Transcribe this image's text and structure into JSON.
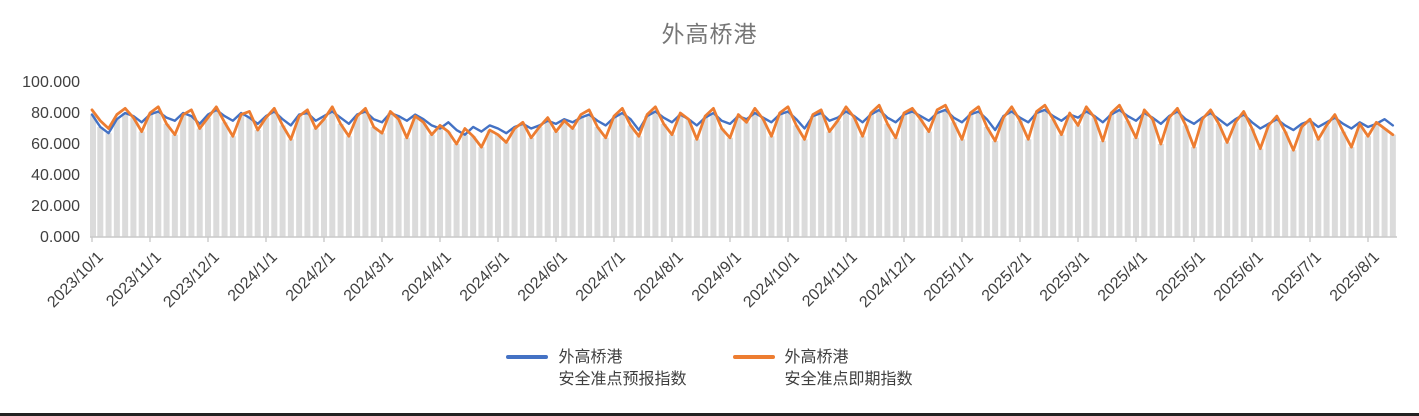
{
  "chart_data": {
    "type": "line",
    "title": "外高桥港",
    "legend_position": "bottom",
    "grid": false,
    "ylim": [
      0,
      100
    ],
    "y_tick_values": [
      0,
      20,
      40,
      60,
      80,
      100
    ],
    "y_tick_labels": [
      "0.000",
      "20.000",
      "40.000",
      "60.000",
      "80.000",
      "100.000"
    ],
    "x_tick_labels": [
      "2023/10/1",
      "2023/11/1",
      "2023/12/1",
      "2024/1/1",
      "2024/2/1",
      "2024/3/1",
      "2024/4/1",
      "2024/5/1",
      "2024/6/1",
      "2024/7/1",
      "2024/8/1",
      "2024/9/1",
      "2024/10/1",
      "2024/11/1",
      "2024/12/1",
      "2025/1/1",
      "2025/2/1",
      "2025/3/1",
      "2025/4/1",
      "2025/5/1",
      "2025/6/1",
      "2025/7/1",
      "2025/8/1"
    ],
    "points_per_tick": 7,
    "drop_bars": {
      "show": true,
      "color": "#dbdbdb"
    },
    "axis_color": "#c9c9c9",
    "tick_text_color": "#404040",
    "title_color": "#767676",
    "series": [
      {
        "name": "外高桥港\n安全准点预报指数",
        "color": "#4472C4",
        "stroke_width": 2.4,
        "values": [
          79,
          71,
          67,
          76,
          80,
          78,
          74,
          79,
          81,
          77,
          75,
          80,
          78,
          73,
          79,
          82,
          78,
          75,
          80,
          77,
          73,
          78,
          81,
          76,
          72,
          79,
          80,
          75,
          78,
          81,
          77,
          73,
          79,
          81,
          76,
          74,
          80,
          78,
          75,
          79,
          76,
          72,
          70,
          74,
          69,
          66,
          71,
          68,
          72,
          70,
          67,
          71,
          73,
          70,
          72,
          75,
          73,
          76,
          74,
          77,
          79,
          75,
          72,
          77,
          80,
          76,
          69,
          78,
          81,
          77,
          74,
          79,
          76,
          72,
          77,
          80,
          75,
          73,
          78,
          76,
          80,
          77,
          74,
          79,
          81,
          76,
          70,
          78,
          80,
          75,
          77,
          81,
          78,
          74,
          79,
          82,
          77,
          74,
          79,
          81,
          78,
          75,
          80,
          82,
          77,
          74,
          79,
          81,
          76,
          69,
          78,
          81,
          77,
          74,
          80,
          82,
          78,
          75,
          79,
          77,
          81,
          78,
          74,
          79,
          82,
          78,
          75,
          80,
          77,
          73,
          78,
          81,
          76,
          73,
          77,
          80,
          76,
          72,
          76,
          79,
          74,
          70,
          73,
          76,
          72,
          69,
          73,
          75,
          71,
          74,
          77,
          73,
          70,
          74,
          71,
          73,
          76,
          72
        ]
      },
      {
        "name": "外高桥港\n安全准点即期指数",
        "color": "#ED7D31",
        "stroke_width": 2.8,
        "values": [
          82,
          75,
          70,
          79,
          83,
          77,
          68,
          80,
          84,
          73,
          66,
          79,
          82,
          70,
          77,
          84,
          74,
          65,
          79,
          81,
          69,
          77,
          83,
          72,
          63,
          78,
          82,
          70,
          76,
          84,
          73,
          65,
          78,
          83,
          71,
          67,
          81,
          76,
          64,
          78,
          74,
          66,
          72,
          68,
          60,
          70,
          65,
          58,
          69,
          66,
          61,
          70,
          74,
          64,
          71,
          77,
          68,
          75,
          70,
          79,
          82,
          71,
          64,
          78,
          83,
          72,
          65,
          79,
          84,
          73,
          66,
          80,
          76,
          63,
          78,
          83,
          70,
          64,
          79,
          74,
          83,
          76,
          65,
          80,
          84,
          72,
          63,
          79,
          82,
          68,
          75,
          84,
          77,
          65,
          80,
          85,
          73,
          64,
          80,
          83,
          76,
          68,
          82,
          85,
          74,
          63,
          80,
          84,
          71,
          62,
          77,
          84,
          75,
          63,
          81,
          85,
          76,
          66,
          80,
          72,
          84,
          77,
          62,
          80,
          85,
          75,
          64,
          82,
          76,
          60,
          77,
          83,
          72,
          58,
          76,
          82,
          73,
          61,
          74,
          81,
          70,
          57,
          72,
          78,
          68,
          56,
          71,
          76,
          63,
          72,
          79,
          68,
          58,
          73,
          65,
          74,
          70,
          66
        ]
      }
    ]
  }
}
